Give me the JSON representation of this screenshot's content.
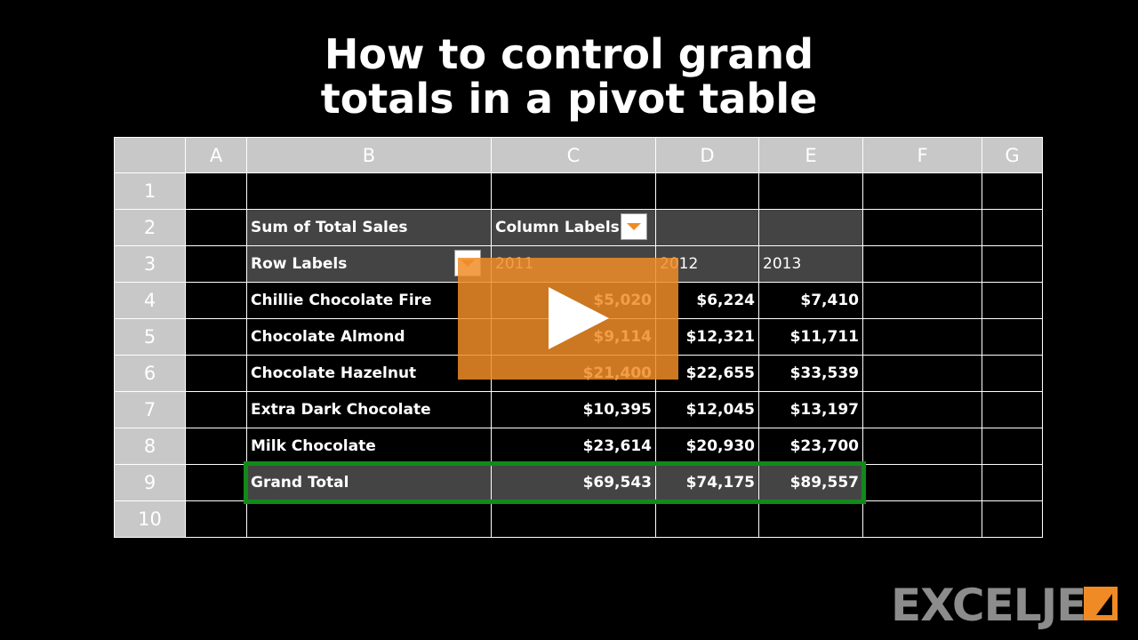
{
  "header": {
    "title_lines": [
      "How to control grand",
      "totals in a pivot table"
    ]
  },
  "sheet": {
    "columns": [
      "A",
      "B",
      "C",
      "D",
      "E",
      "F",
      "G"
    ],
    "row_numbers": [
      "1",
      "2",
      "3",
      "4",
      "5",
      "6",
      "7",
      "8",
      "9",
      "10"
    ]
  },
  "pivot": {
    "values_label": "Sum of Total Sales",
    "column_labels": "Column Labels",
    "row_labels": "Row Labels",
    "years": [
      "2011",
      "2012",
      "2013"
    ],
    "items": [
      {
        "name": "Chillie Chocolate Fire",
        "values": [
          "$5,020",
          "$6,224",
          "$7,410"
        ]
      },
      {
        "name": "Chocolate Almond",
        "values": [
          "$9,114",
          "$12,321",
          "$11,711"
        ]
      },
      {
        "name": "Chocolate Hazelnut",
        "values": [
          "$21,400",
          "$22,655",
          "$33,539"
        ]
      },
      {
        "name": "Extra Dark Chocolate",
        "values": [
          "$10,395",
          "$12,045",
          "$13,197"
        ]
      },
      {
        "name": "Milk Chocolate",
        "values": [
          "$23,614",
          "$20,930",
          "$23,700"
        ]
      }
    ],
    "grand_total": {
      "name": "Grand Total",
      "values": [
        "$69,543",
        "$74,175",
        "$89,557"
      ]
    }
  },
  "logo": {
    "text": "EXCELJET"
  }
}
